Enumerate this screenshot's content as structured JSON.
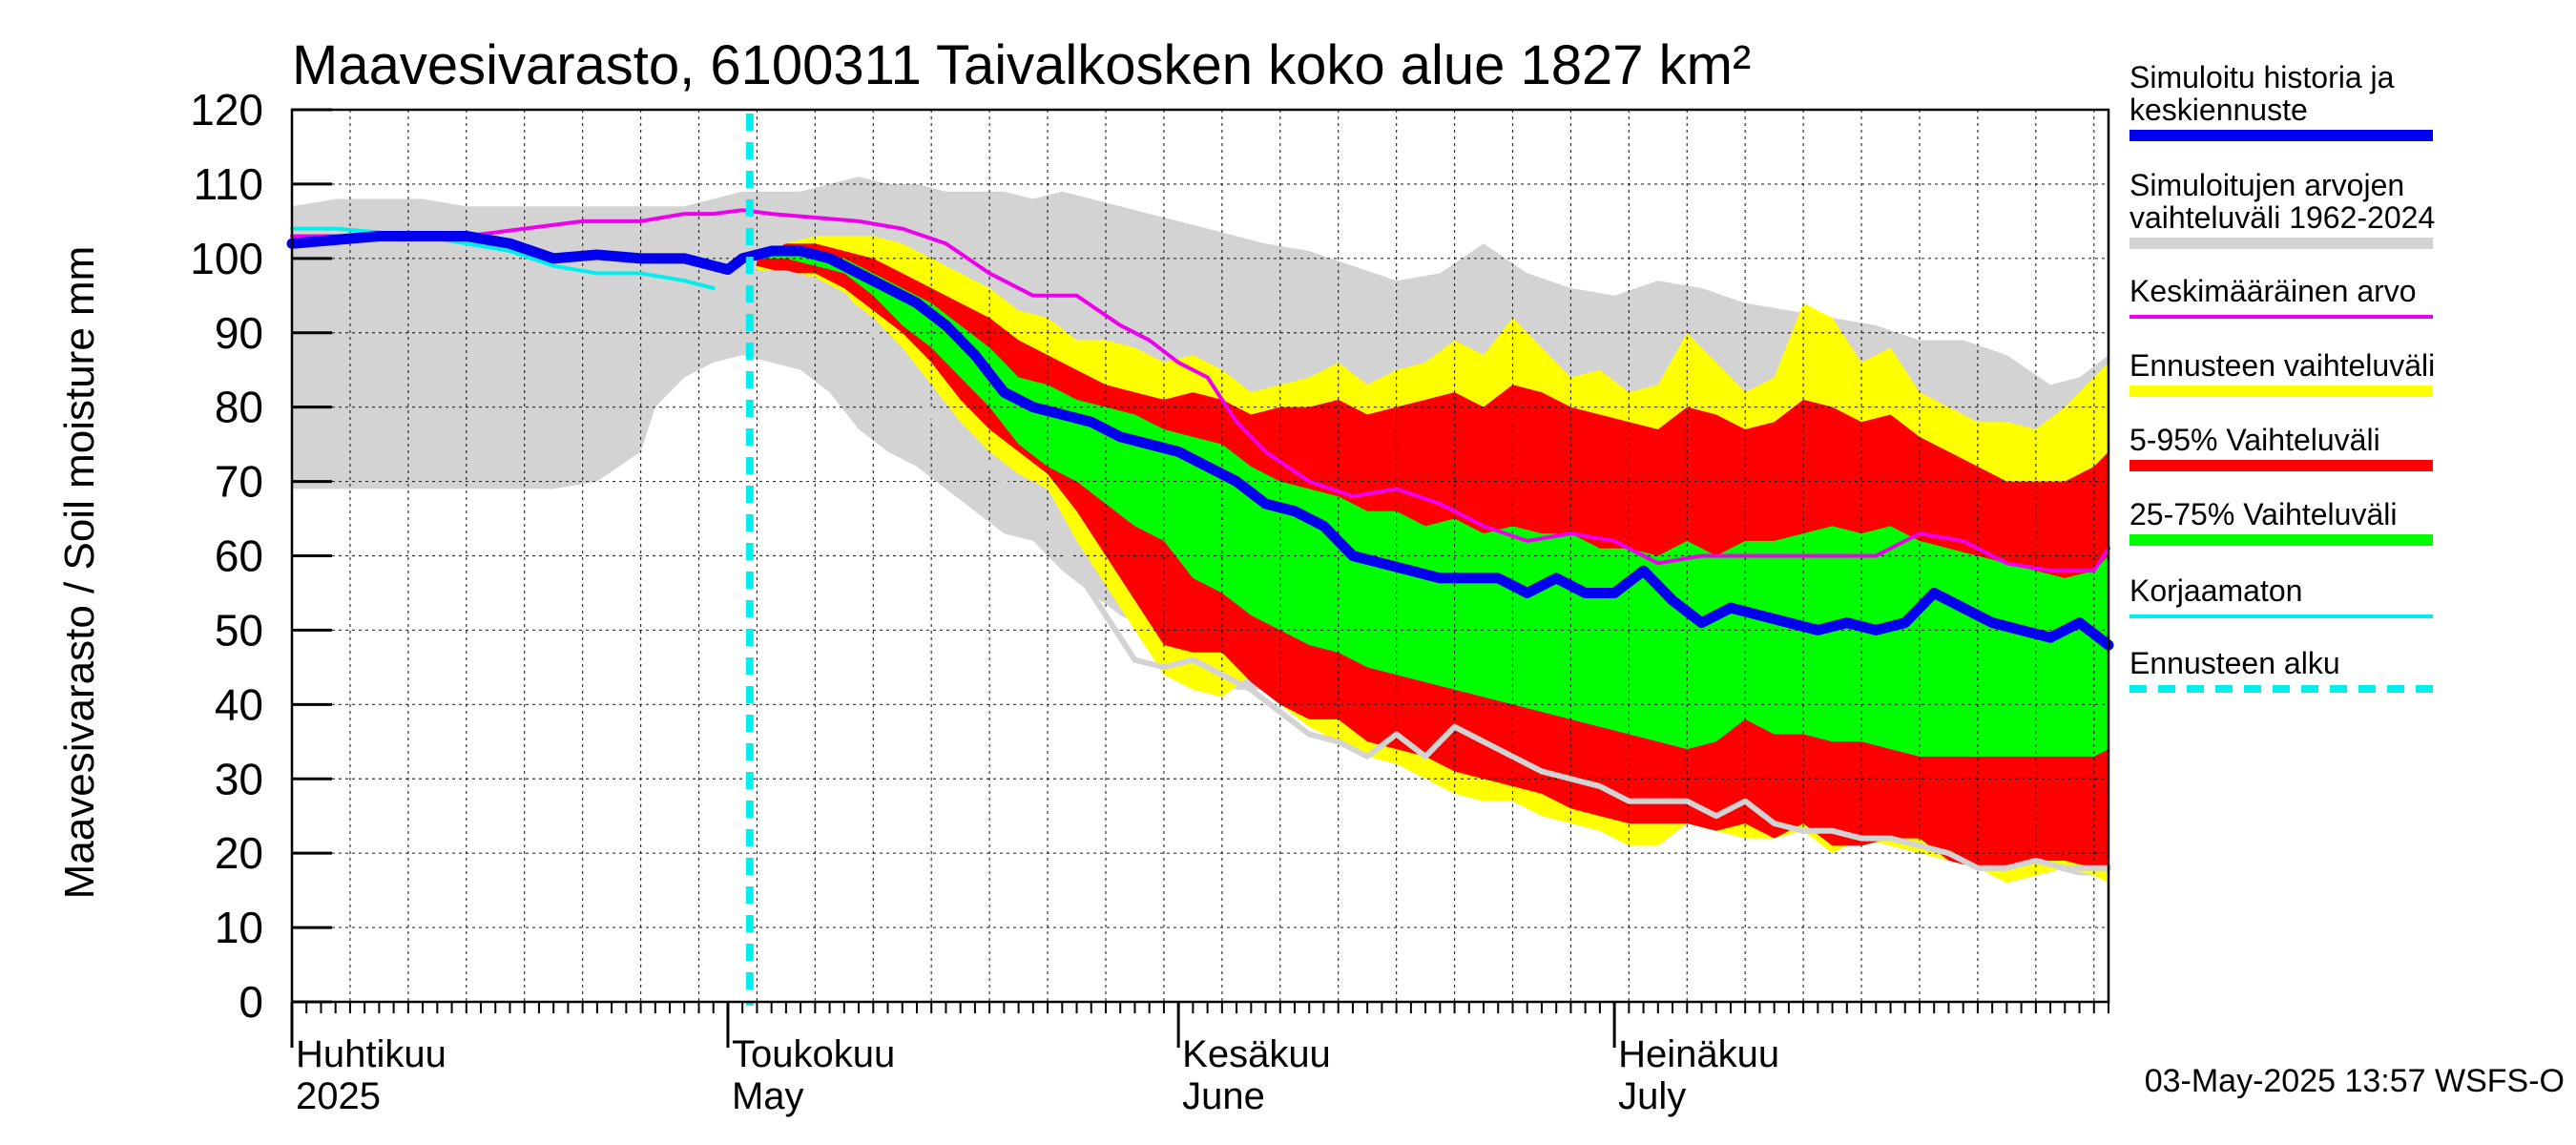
{
  "chart_data": {
    "type": "area",
    "title": "Maavesivarasto, 6100311 Taivalkosken koko alue 1827 km²",
    "ylabel": "Maavesivarasto / Soil moisture   mm",
    "xlabel": "",
    "ylim": [
      0,
      120
    ],
    "yticks": [
      0,
      10,
      20,
      30,
      40,
      50,
      60,
      70,
      80,
      90,
      100,
      110,
      120
    ],
    "x_range_days": [
      0,
      125
    ],
    "x_start_date": "2025-04-01",
    "forecast_start_day": 31.5,
    "month_labels": [
      {
        "day": 0,
        "fi": "Huhtikuu",
        "en": "2025"
      },
      {
        "day": 30,
        "fi": "Toukokuu",
        "en": "May"
      },
      {
        "day": 61,
        "fi": "Kesäkuu",
        "en": "June"
      },
      {
        "day": 91,
        "fi": "Heinäkuu",
        "en": "July"
      }
    ],
    "timestamp": "03-May-2025 13:57 WSFS-O",
    "colors": {
      "hist": "#d3d3d3",
      "yellow": "#ffff00",
      "red": "#ff0000",
      "green": "#00ff00",
      "median": "#0000ee",
      "mean": "#ee00ee",
      "uncorrected": "#00eeee",
      "forecast_start": "#00eeee",
      "min_line": "#d3d3d3"
    },
    "series": {
      "hist_band": {
        "name": "Simuloitujen arvojen vaihteluväli 1962-2024",
        "x": [
          0,
          3,
          6,
          9,
          12,
          15,
          18,
          21,
          24,
          25,
          27,
          29,
          31,
          33,
          35,
          37,
          39,
          41,
          43,
          45,
          47,
          49,
          51,
          53,
          55,
          57,
          59,
          61,
          63,
          65,
          67,
          70,
          73,
          76,
          79,
          82,
          85,
          88,
          91,
          94,
          97,
          100,
          103,
          106,
          109,
          112,
          115,
          118,
          121,
          123,
          125
        ],
        "upper": [
          107,
          108,
          108,
          108,
          107,
          107,
          107,
          107,
          107,
          107,
          107,
          108,
          109,
          109,
          109,
          110,
          111,
          110,
          110,
          109,
          109,
          109,
          108,
          109,
          108,
          107,
          106,
          105,
          104,
          103,
          102,
          101,
          99,
          97,
          98,
          102,
          98,
          96,
          95,
          97,
          96,
          94,
          93,
          92,
          91,
          89,
          89,
          87,
          83,
          84,
          87
        ],
        "lower": [
          69,
          69,
          69,
          69,
          69,
          69,
          69,
          70,
          74,
          80,
          84,
          86,
          87,
          86,
          85,
          82,
          77,
          74,
          72,
          69,
          66,
          63,
          62,
          58,
          55,
          52,
          50,
          48,
          44,
          42,
          42,
          41,
          39,
          38,
          36,
          33,
          33,
          30,
          28,
          27,
          26,
          26,
          24,
          23,
          22,
          21,
          20,
          19,
          18,
          17,
          17
        ]
      },
      "yellow_band": {
        "name": "Ennusteen vaihteluväli",
        "x": [
          32,
          34,
          36,
          38,
          40,
          42,
          44,
          46,
          48,
          50,
          52,
          54,
          56,
          58,
          60,
          62,
          64,
          66,
          68,
          70,
          72,
          74,
          76,
          78,
          80,
          82,
          84,
          86,
          88,
          90,
          92,
          94,
          96,
          98,
          100,
          102,
          104,
          106,
          108,
          110,
          112,
          114,
          116,
          118,
          120,
          122,
          124,
          125
        ],
        "upper": [
          100,
          102,
          103,
          103,
          103,
          102,
          100,
          98,
          96,
          93,
          92,
          89,
          89,
          88,
          86,
          87,
          85,
          82,
          83,
          84,
          86,
          83,
          85,
          86,
          89,
          87,
          92,
          88,
          84,
          85,
          82,
          83,
          90,
          86,
          82,
          84,
          94,
          92,
          86,
          88,
          82,
          80,
          78,
          78,
          77,
          80,
          84,
          86
        ],
        "lower": [
          98,
          98,
          97,
          95,
          92,
          88,
          83,
          78,
          74,
          71,
          69,
          62,
          56,
          50,
          44,
          42,
          41,
          44,
          40,
          37,
          35,
          33,
          32,
          30,
          28,
          27,
          27,
          25,
          24,
          23,
          21,
          21,
          24,
          23,
          22,
          22,
          23,
          20,
          22,
          21,
          20,
          19,
          18,
          16,
          17,
          18,
          17,
          16
        ]
      },
      "red_band": {
        "name": "5-95% Vaihteluväli",
        "x": [
          32,
          34,
          36,
          38,
          40,
          42,
          44,
          46,
          48,
          50,
          52,
          54,
          56,
          58,
          60,
          62,
          64,
          66,
          68,
          70,
          72,
          74,
          76,
          78,
          80,
          82,
          84,
          86,
          88,
          90,
          92,
          94,
          96,
          98,
          100,
          102,
          104,
          106,
          108,
          110,
          112,
          114,
          116,
          118,
          120,
          122,
          124,
          125
        ],
        "upper": [
          100,
          102,
          102,
          101,
          100,
          98,
          96,
          94,
          92,
          89,
          87,
          85,
          83,
          82,
          81,
          82,
          81,
          79,
          80,
          80,
          81,
          79,
          80,
          81,
          82,
          80,
          83,
          82,
          80,
          79,
          78,
          77,
          80,
          79,
          77,
          78,
          81,
          80,
          78,
          79,
          76,
          74,
          72,
          70,
          70,
          70,
          72,
          74
        ],
        "lower": [
          99,
          98,
          98,
          96,
          93,
          90,
          86,
          81,
          77,
          74,
          71,
          66,
          60,
          54,
          48,
          47,
          47,
          43,
          40,
          38,
          38,
          35,
          34,
          33,
          31,
          30,
          29,
          28,
          26,
          25,
          24,
          24,
          24,
          23,
          24,
          22,
          24,
          21,
          21,
          22,
          22,
          19,
          18,
          18,
          19,
          19,
          18,
          18
        ]
      },
      "green_band": {
        "name": "25-75% Vaihteluväli",
        "x": [
          32,
          34,
          36,
          38,
          40,
          42,
          44,
          46,
          48,
          50,
          52,
          54,
          56,
          58,
          60,
          62,
          64,
          66,
          68,
          70,
          72,
          74,
          76,
          78,
          80,
          82,
          84,
          86,
          88,
          90,
          92,
          94,
          96,
          98,
          100,
          102,
          104,
          106,
          108,
          110,
          112,
          114,
          116,
          118,
          120,
          122,
          124,
          125
        ],
        "upper": [
          100,
          101,
          101,
          100,
          98,
          96,
          94,
          91,
          88,
          84,
          83,
          81,
          80,
          79,
          77,
          76,
          75,
          72,
          70,
          69,
          68,
          66,
          66,
          64,
          65,
          63,
          64,
          63,
          63,
          61,
          61,
          60,
          62,
          60,
          62,
          62,
          63,
          64,
          63,
          64,
          62,
          61,
          60,
          59,
          58,
          57,
          58,
          60
        ],
        "lower": [
          100,
          100,
          99,
          98,
          95,
          91,
          88,
          84,
          80,
          75,
          72,
          70,
          67,
          64,
          62,
          57,
          55,
          52,
          50,
          48,
          47,
          45,
          44,
          43,
          42,
          41,
          40,
          39,
          38,
          37,
          36,
          35,
          34,
          35,
          38,
          36,
          36,
          35,
          35,
          34,
          33,
          33,
          33,
          33,
          33,
          33,
          33,
          34
        ]
      },
      "median": {
        "name": "Simuloitu historia ja keskiennuste",
        "x": [
          0,
          3,
          6,
          9,
          12,
          15,
          18,
          21,
          24,
          27,
          29,
          30,
          31,
          33,
          35,
          37,
          39,
          41,
          43,
          45,
          47,
          49,
          51,
          53,
          55,
          57,
          59,
          61,
          63,
          65,
          67,
          69,
          71,
          73,
          75,
          77,
          79,
          81,
          83,
          85,
          87,
          89,
          91,
          93,
          95,
          97,
          99,
          101,
          103,
          105,
          107,
          109,
          111,
          113,
          115,
          117,
          119,
          121,
          123,
          125
        ],
        "y": [
          102,
          102.5,
          103,
          103,
          103,
          102,
          100,
          100.5,
          100,
          100,
          99,
          98.5,
          100,
          101,
          101,
          100,
          98,
          96,
          94,
          91,
          87,
          82,
          80,
          79,
          78,
          76,
          75,
          74,
          72,
          70,
          67,
          66,
          64,
          60,
          59,
          58,
          57,
          57,
          57,
          55,
          57,
          55,
          55,
          58,
          54,
          51,
          53,
          52,
          51,
          50,
          51,
          50,
          51,
          55,
          53,
          51,
          50,
          49,
          51,
          48
        ]
      },
      "mean": {
        "name": "Keskimääräinen arvo",
        "x": [
          0,
          4,
          8,
          12,
          16,
          20,
          24,
          27,
          29,
          31,
          33,
          36,
          39,
          42,
          45,
          48,
          51,
          54,
          57,
          59,
          61,
          63,
          65,
          67,
          70,
          73,
          76,
          79,
          82,
          85,
          88,
          91,
          94,
          97,
          100,
          103,
          106,
          109,
          112,
          115,
          118,
          121,
          124,
          125
        ],
        "y": [
          103,
          103,
          103,
          103,
          104,
          105,
          105,
          106,
          106,
          106.5,
          106,
          105.5,
          105,
          104,
          102,
          98,
          95,
          95,
          91,
          89,
          86,
          84,
          78,
          74,
          70,
          68,
          69,
          67,
          64,
          62,
          63,
          62,
          59,
          60,
          60,
          60,
          60,
          60,
          63,
          62,
          59,
          58,
          58,
          61
        ]
      },
      "uncorrected": {
        "name": "Korjaamaton",
        "x": [
          0,
          3,
          6,
          9,
          12,
          15,
          18,
          21,
          24,
          27,
          29
        ],
        "y": [
          104,
          104,
          103.5,
          103,
          102,
          101,
          99,
          98,
          98,
          97,
          96
        ]
      },
      "min_line": {
        "name": "",
        "x": [
          32,
          34,
          36,
          38,
          40,
          42,
          44,
          46,
          48,
          50,
          52,
          54,
          56,
          58,
          60,
          62,
          64,
          66,
          68,
          70,
          72,
          74,
          76,
          78,
          80,
          82,
          84,
          86,
          88,
          90,
          92,
          94,
          96,
          98,
          100,
          102,
          104,
          106,
          108,
          110,
          112,
          114,
          116,
          118,
          120,
          122,
          124,
          125
        ],
        "y": [
          98,
          98,
          97,
          95,
          90,
          84,
          79,
          74,
          72,
          68,
          64,
          58,
          52,
          46,
          45,
          46,
          44,
          42,
          39,
          36,
          35,
          33,
          36,
          33,
          37,
          35,
          33,
          31,
          30,
          29,
          27,
          27,
          27,
          25,
          27,
          24,
          23,
          23,
          22,
          22,
          21,
          20,
          18,
          18,
          19,
          18,
          18,
          18
        ]
      }
    },
    "legend": [
      {
        "label": "Simuloitu historia ja keskiennuste",
        "color": "#0000ee",
        "style": "thick"
      },
      {
        "label": "Simuloitujen arvojen vaihteluväli 1962-2024",
        "color": "#d3d3d3",
        "style": "thick"
      },
      {
        "label": "Keskimääräinen arvo",
        "color": "#ee00ee",
        "style": "thin"
      },
      {
        "label": "Ennusteen vaihteluväli",
        "color": "#ffff00",
        "style": "thick"
      },
      {
        "label": "5-95% Vaihteluväli",
        "color": "#ff0000",
        "style": "thick"
      },
      {
        "label": "25-75% Vaihteluväli",
        "color": "#00ff00",
        "style": "thick"
      },
      {
        "label": "Korjaamaton",
        "color": "#00eeee",
        "style": "thin"
      },
      {
        "label": "Ennusteen alku",
        "color": "#00eeee",
        "style": "dashed"
      }
    ]
  }
}
